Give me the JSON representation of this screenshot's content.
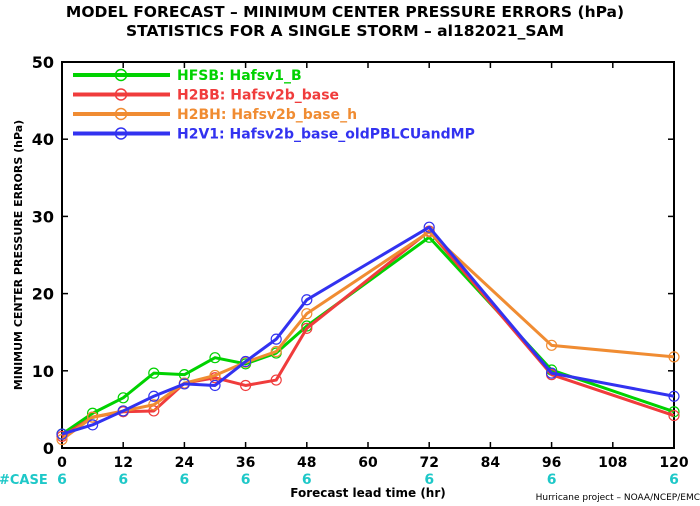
{
  "chart_data": {
    "type": "line",
    "title": "MODEL FORECAST – MINIMUM CENTER PRESSURE ERRORS (hPa)",
    "subtitle": "STATISTICS FOR A SINGLE STORM – al182021_SAM",
    "xlabel": "Forecast lead time (hr)",
    "ylabel": "MINIMUM CENTER PRESSURE ERRORS (hPa)",
    "xlim": [
      0,
      120
    ],
    "ylim": [
      0,
      50
    ],
    "xticks": [
      "0",
      "12",
      "24",
      "36",
      "48",
      "60",
      "72",
      "84",
      "96",
      "108",
      "120"
    ],
    "yticks": [
      "0",
      "10",
      "20",
      "30",
      "40",
      "50"
    ],
    "grid": false,
    "legend_position": "top-left",
    "series": [
      {
        "name": "HFSB: Hafsv1_B",
        "color": "#00d200",
        "x": [
          0,
          6,
          12,
          18,
          24,
          30,
          36,
          42,
          48,
          72,
          96,
          120
        ],
        "values": [
          1.8,
          4.5,
          6.5,
          9.7,
          9.5,
          11.7,
          10.9,
          12.3,
          15.8,
          27.3,
          10.1,
          4.7
        ]
      },
      {
        "name": "H2BB: Hafsv2b_base",
        "color": "#f03c3c",
        "x": [
          0,
          6,
          12,
          18,
          24,
          30,
          36,
          42,
          48,
          72,
          96,
          120
        ],
        "values": [
          1.5,
          4.0,
          4.7,
          4.8,
          8.4,
          9.1,
          8.1,
          8.8,
          15.5,
          28.1,
          9.5,
          4.2
        ]
      },
      {
        "name": "H2BH: Hafsv2b_base_h",
        "color": "#f08c32",
        "x": [
          0,
          6,
          12,
          18,
          24,
          30,
          36,
          42,
          48,
          72,
          96,
          120
        ],
        "values": [
          1.1,
          4.0,
          4.8,
          5.6,
          8.4,
          9.4,
          11.1,
          12.5,
          17.4,
          28.0,
          13.3,
          11.8
        ]
      },
      {
        "name": "H2V1: Hafsv2b_base_oldPBLCUandMP",
        "color": "#3232f0",
        "x": [
          0,
          6,
          12,
          18,
          24,
          30,
          36,
          42,
          48,
          72,
          96,
          120
        ],
        "values": [
          1.8,
          3.0,
          4.8,
          6.7,
          8.3,
          8.1,
          11.2,
          14.1,
          19.2,
          28.6,
          9.7,
          6.7
        ]
      }
    ],
    "case_label": "#CASE",
    "case_x": [
      0,
      12,
      24,
      36,
      48,
      72,
      96,
      120
    ],
    "case_counts": [
      "6",
      "6",
      "6",
      "6",
      "6",
      "6",
      "6",
      "6"
    ],
    "case_color": "#1ec8c8",
    "footer": "Hurricane project – NOAA/NCEP/EMC"
  }
}
